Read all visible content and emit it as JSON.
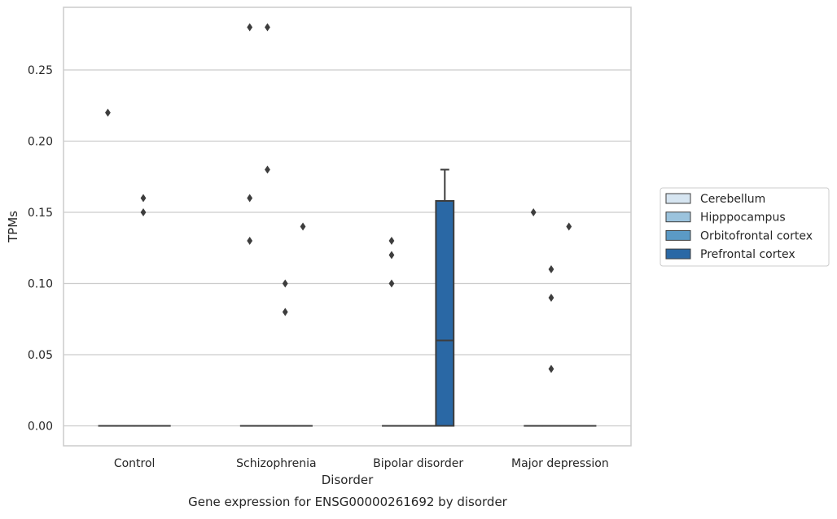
{
  "chart_data": {
    "type": "box",
    "xlabel": "Disorder",
    "ylabel": "TPMs",
    "caption": "Gene expression for ENSG00000261692 by disorder",
    "ylim": [
      -0.014,
      0.294
    ],
    "yticks": [
      "0.00",
      "0.05",
      "0.10",
      "0.15",
      "0.20",
      "0.25"
    ],
    "grid": "horizontal",
    "legend_position": "right",
    "categories": [
      "Control",
      "Schizophrenia",
      "Bipolar disorder",
      "Major depression"
    ],
    "series": [
      {
        "name": "Cerebellum",
        "color": "#d6e5f1"
      },
      {
        "name": "Hipppocampus",
        "color": "#9bc3dd"
      },
      {
        "name": "Orbitofrontal cortex",
        "color": "#5b9ac6"
      },
      {
        "name": "Prefrontal cortex",
        "color": "#2a68a5"
      }
    ],
    "boxes": [
      {
        "category": "Control",
        "series": "Cerebellum",
        "q1": 0,
        "median": 0,
        "q3": 0,
        "whisker_low": 0,
        "whisker_high": 0,
        "outliers": [
          0.22
        ]
      },
      {
        "category": "Control",
        "series": "Hipppocampus",
        "q1": 0,
        "median": 0,
        "q3": 0,
        "whisker_low": 0,
        "whisker_high": 0,
        "outliers": []
      },
      {
        "category": "Control",
        "series": "Orbitofrontal cortex",
        "q1": 0,
        "median": 0,
        "q3": 0,
        "whisker_low": 0,
        "whisker_high": 0,
        "outliers": [
          0.16,
          0.15
        ]
      },
      {
        "category": "Control",
        "series": "Prefrontal cortex",
        "q1": 0,
        "median": 0,
        "q3": 0,
        "whisker_low": 0,
        "whisker_high": 0,
        "outliers": []
      },
      {
        "category": "Schizophrenia",
        "series": "Cerebellum",
        "q1": 0,
        "median": 0,
        "q3": 0,
        "whisker_low": 0,
        "whisker_high": 0,
        "outliers": [
          0.28,
          0.16,
          0.13
        ]
      },
      {
        "category": "Schizophrenia",
        "series": "Hipppocampus",
        "q1": 0,
        "median": 0,
        "q3": 0,
        "whisker_low": 0,
        "whisker_high": 0,
        "outliers": [
          0.28,
          0.18
        ]
      },
      {
        "category": "Schizophrenia",
        "series": "Orbitofrontal cortex",
        "q1": 0,
        "median": 0,
        "q3": 0,
        "whisker_low": 0,
        "whisker_high": 0,
        "outliers": [
          0.1,
          0.08
        ]
      },
      {
        "category": "Schizophrenia",
        "series": "Prefrontal cortex",
        "q1": 0,
        "median": 0,
        "q3": 0,
        "whisker_low": 0,
        "whisker_high": 0,
        "outliers": [
          0.14
        ]
      },
      {
        "category": "Bipolar disorder",
        "series": "Cerebellum",
        "q1": 0,
        "median": 0,
        "q3": 0,
        "whisker_low": 0,
        "whisker_high": 0,
        "outliers": [
          0.13,
          0.12,
          0.1
        ]
      },
      {
        "category": "Bipolar disorder",
        "series": "Hipppocampus",
        "q1": 0,
        "median": 0,
        "q3": 0,
        "whisker_low": 0,
        "whisker_high": 0,
        "outliers": []
      },
      {
        "category": "Bipolar disorder",
        "series": "Orbitofrontal cortex",
        "q1": 0,
        "median": 0,
        "q3": 0,
        "whisker_low": 0,
        "whisker_high": 0,
        "outliers": []
      },
      {
        "category": "Bipolar disorder",
        "series": "Prefrontal cortex",
        "q1": 0,
        "median": 0.06,
        "q3": 0.158,
        "whisker_low": 0,
        "whisker_high": 0.18,
        "outliers": []
      },
      {
        "category": "Major depression",
        "series": "Cerebellum",
        "q1": 0,
        "median": 0,
        "q3": 0,
        "whisker_low": 0,
        "whisker_high": 0,
        "outliers": [
          0.15
        ]
      },
      {
        "category": "Major depression",
        "series": "Hipppocampus",
        "q1": 0,
        "median": 0,
        "q3": 0,
        "whisker_low": 0,
        "whisker_high": 0,
        "outliers": [
          0.11,
          0.09,
          0.04
        ]
      },
      {
        "category": "Major depression",
        "series": "Orbitofrontal cortex",
        "q1": 0,
        "median": 0,
        "q3": 0,
        "whisker_low": 0,
        "whisker_high": 0,
        "outliers": [
          0.14
        ]
      },
      {
        "category": "Major depression",
        "series": "Prefrontal cortex",
        "q1": 0,
        "median": 0,
        "q3": 0,
        "whisker_low": 0,
        "whisker_high": 0,
        "outliers": []
      }
    ]
  }
}
